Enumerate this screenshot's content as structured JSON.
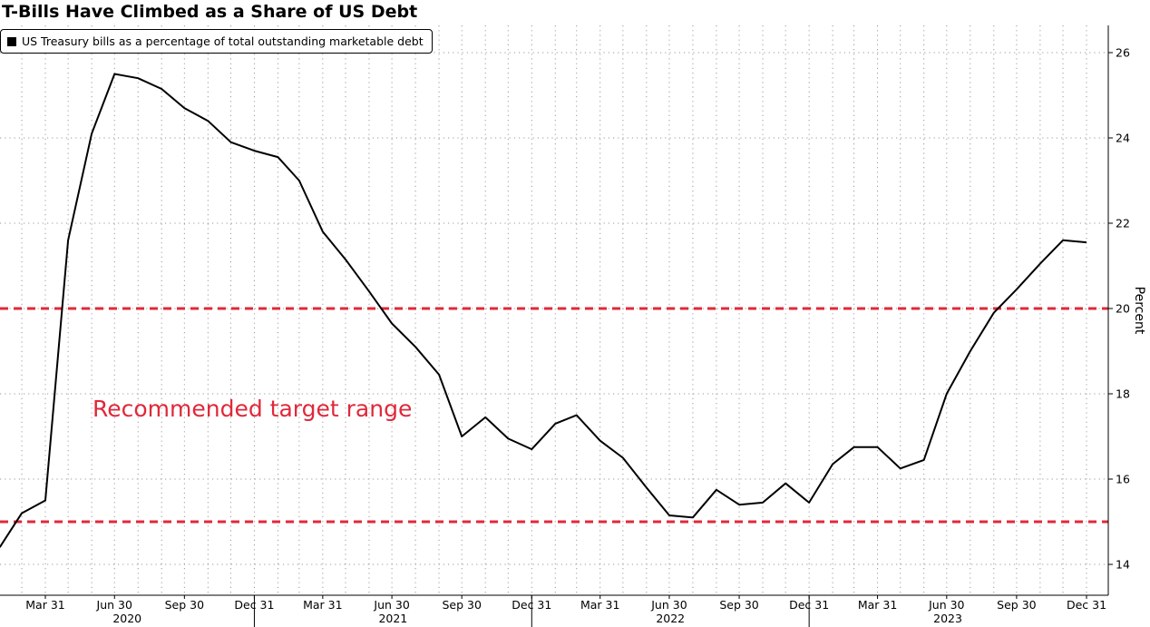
{
  "title": "T-Bills Have Climbed as a Share of US Debt",
  "annotation": "Recommended target range",
  "colors": {
    "line": "#000000",
    "target": "#e0283a",
    "grid": "#9a9a9a"
  },
  "chart_data": {
    "type": "line",
    "title": "T-Bills Have Climbed as a Share of US Debt",
    "ylabel": "Percent",
    "xlabel": "",
    "ylim": [
      13.5,
      26.5
    ],
    "yticks": [
      14,
      16,
      18,
      20,
      22,
      24,
      26
    ],
    "x_tick_labels": [
      "Mar 31",
      "Jun 30",
      "Sep 30",
      "Dec 31",
      "Mar 31",
      "Jun 30",
      "Sep 30",
      "Dec 31",
      "Mar 31",
      "Jun 30",
      "Sep 30",
      "Dec 31",
      "Mar 31",
      "Jun 30",
      "Sep 30",
      "Dec 31"
    ],
    "year_labels": [
      "2020",
      "2021",
      "2022",
      "2023"
    ],
    "grid": true,
    "legend_position": "top-left",
    "reference_lines": [
      {
        "value": 20,
        "style": "dashed",
        "color": "#e0283a"
      },
      {
        "value": 15,
        "style": "dashed",
        "color": "#e0283a"
      }
    ],
    "series": [
      {
        "name": "US Treasury bills as a percentage of total outstanding marketable debt",
        "x": [
          "2020-01-31",
          "2020-02-29",
          "2020-03-31",
          "2020-04-30",
          "2020-05-31",
          "2020-06-30",
          "2020-07-31",
          "2020-08-31",
          "2020-09-30",
          "2020-10-31",
          "2020-11-30",
          "2020-12-31",
          "2021-01-31",
          "2021-02-28",
          "2021-03-31",
          "2021-04-30",
          "2021-05-31",
          "2021-06-30",
          "2021-07-31",
          "2021-08-31",
          "2021-09-30",
          "2021-10-31",
          "2021-11-30",
          "2021-12-31",
          "2022-01-31",
          "2022-02-28",
          "2022-03-31",
          "2022-04-30",
          "2022-05-31",
          "2022-06-30",
          "2022-07-31",
          "2022-08-31",
          "2022-09-30",
          "2022-10-31",
          "2022-11-30",
          "2022-12-31",
          "2023-01-31",
          "2023-02-28",
          "2023-03-31",
          "2023-04-30",
          "2023-05-31",
          "2023-06-30",
          "2023-07-31",
          "2023-08-31",
          "2023-09-30",
          "2023-10-31",
          "2023-11-30",
          "2023-12-31"
        ],
        "values": [
          14.4,
          15.2,
          15.5,
          21.6,
          24.1,
          25.5,
          25.4,
          25.15,
          24.7,
          24.4,
          23.9,
          23.7,
          23.55,
          23.0,
          21.8,
          21.15,
          20.4,
          19.65,
          19.1,
          18.45,
          17.0,
          17.45,
          16.95,
          16.7,
          17.3,
          17.5,
          16.9,
          16.5,
          15.8,
          15.15,
          15.1,
          15.75,
          15.4,
          15.45,
          15.9,
          15.45,
          16.35,
          16.75,
          16.75,
          16.25,
          16.45,
          18.0,
          19.0,
          19.9,
          20.45,
          21.05,
          21.6,
          21.55
        ]
      }
    ]
  }
}
